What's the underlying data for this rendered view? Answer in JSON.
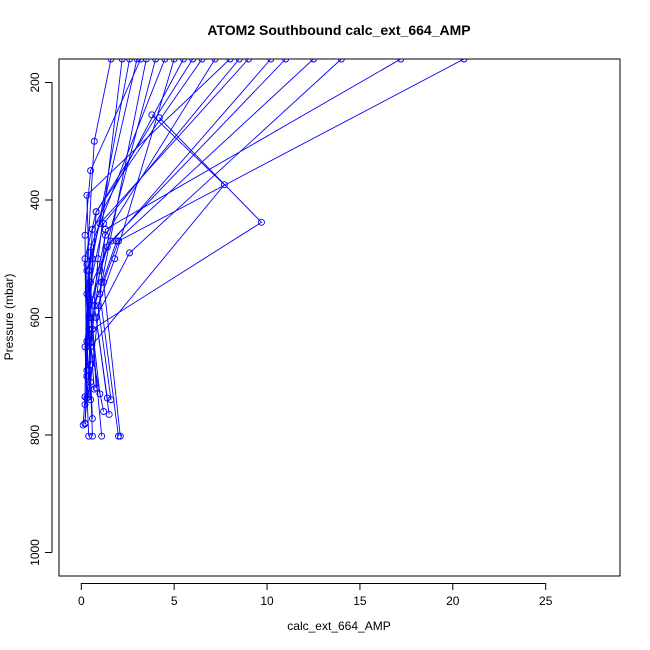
{
  "chart_data": {
    "type": "line",
    "title": "ATOM2 Southbound calc_ext_664_AMP",
    "xlabel": "calc_ext_664_AMP",
    "ylabel": "Pressure (mbar)",
    "xlim": [
      -1.2,
      29.0
    ],
    "ylim": [
      1040,
      160
    ],
    "x_ticks": [
      0,
      5,
      10,
      15,
      20,
      25
    ],
    "y_ticks": [
      200,
      400,
      600,
      800,
      1000
    ],
    "y_reversed": true,
    "color": "#0000ff",
    "marker": "open-circle",
    "series": [
      {
        "x": [
          0.1,
          0.2,
          0.4,
          3.0
        ],
        "y": [
          783,
          735,
          520,
          160
        ]
      },
      {
        "x": [
          0.2,
          0.3,
          0.5,
          4.5
        ],
        "y": [
          781,
          700,
          480,
          160
        ]
      },
      {
        "x": [
          0.4,
          0.2,
          0.6,
          5.5
        ],
        "y": [
          802,
          650,
          450,
          160
        ]
      },
      {
        "x": [
          0.6,
          0.4,
          0.8,
          6.5
        ],
        "y": [
          802,
          620,
          420,
          160
        ]
      },
      {
        "x": [
          1.1,
          0.5,
          0.3,
          8.0
        ],
        "y": [
          802,
          600,
          392,
          160
        ]
      },
      {
        "x": [
          2.0,
          1.0,
          1.3,
          17.2
        ],
        "y": [
          802,
          560,
          450,
          160
        ]
      },
      {
        "x": [
          2.1,
          1.2,
          2.0,
          20.6
        ],
        "y": [
          802,
          540,
          470,
          160
        ]
      },
      {
        "x": [
          1.5,
          0.8,
          2.6,
          14.0
        ],
        "y": [
          765,
          600,
          490,
          160
        ]
      },
      {
        "x": [
          1.2,
          0.5,
          7.7,
          3.8
        ],
        "y": [
          760,
          650,
          374,
          255
        ]
      },
      {
        "x": [
          0.3,
          0.6,
          9.7,
          4.2
        ],
        "y": [
          737,
          620,
          438,
          260
        ]
      },
      {
        "x": [
          0.6,
          0.3,
          1.6,
          11.0
        ],
        "y": [
          772,
          560,
          470,
          160
        ]
      },
      {
        "x": [
          1.4,
          0.7,
          1.9,
          12.5
        ],
        "y": [
          737,
          580,
          470,
          160
        ]
      },
      {
        "x": [
          0.2,
          0.4,
          0.9,
          2.2
        ],
        "y": [
          780,
          690,
          500,
          160
        ]
      },
      {
        "x": [
          0.5,
          0.3,
          0.6,
          2.6
        ],
        "y": [
          740,
          640,
          500,
          160
        ]
      },
      {
        "x": [
          0.2,
          0.5,
          1.1,
          3.5
        ],
        "y": [
          748,
          710,
          540,
          160
        ]
      },
      {
        "x": [
          0.7,
          0.4,
          1.3,
          7.2
        ],
        "y": [
          722,
          600,
          460,
          160
        ]
      },
      {
        "x": [
          0.3,
          0.2,
          0.8,
          6.0
        ],
        "y": [
          700,
          500,
          420,
          160
        ]
      },
      {
        "x": [
          0.5,
          0.3,
          1.0,
          9.0
        ],
        "y": [
          680,
          520,
          440,
          160
        ]
      },
      {
        "x": [
          0.4,
          0.6,
          1.4,
          10.2
        ],
        "y": [
          735,
          570,
          480,
          160
        ]
      },
      {
        "x": [
          0.2,
          0.3,
          0.7,
          1.6
        ],
        "y": [
          735,
          510,
          300,
          160
        ]
      },
      {
        "x": [
          1.0,
          0.6,
          1.0,
          4.0
        ],
        "y": [
          730,
          620,
          520,
          160
        ]
      },
      {
        "x": [
          1.6,
          0.9,
          1.8,
          5.0
        ],
        "y": [
          740,
          580,
          500,
          160
        ]
      },
      {
        "x": [
          0.3,
          0.2,
          0.5,
          3.2
        ],
        "y": [
          690,
          460,
          350,
          160
        ]
      },
      {
        "x": [
          0.8,
          0.5,
          1.2,
          8.5
        ],
        "y": [
          720,
          540,
          440,
          160
        ]
      }
    ]
  }
}
